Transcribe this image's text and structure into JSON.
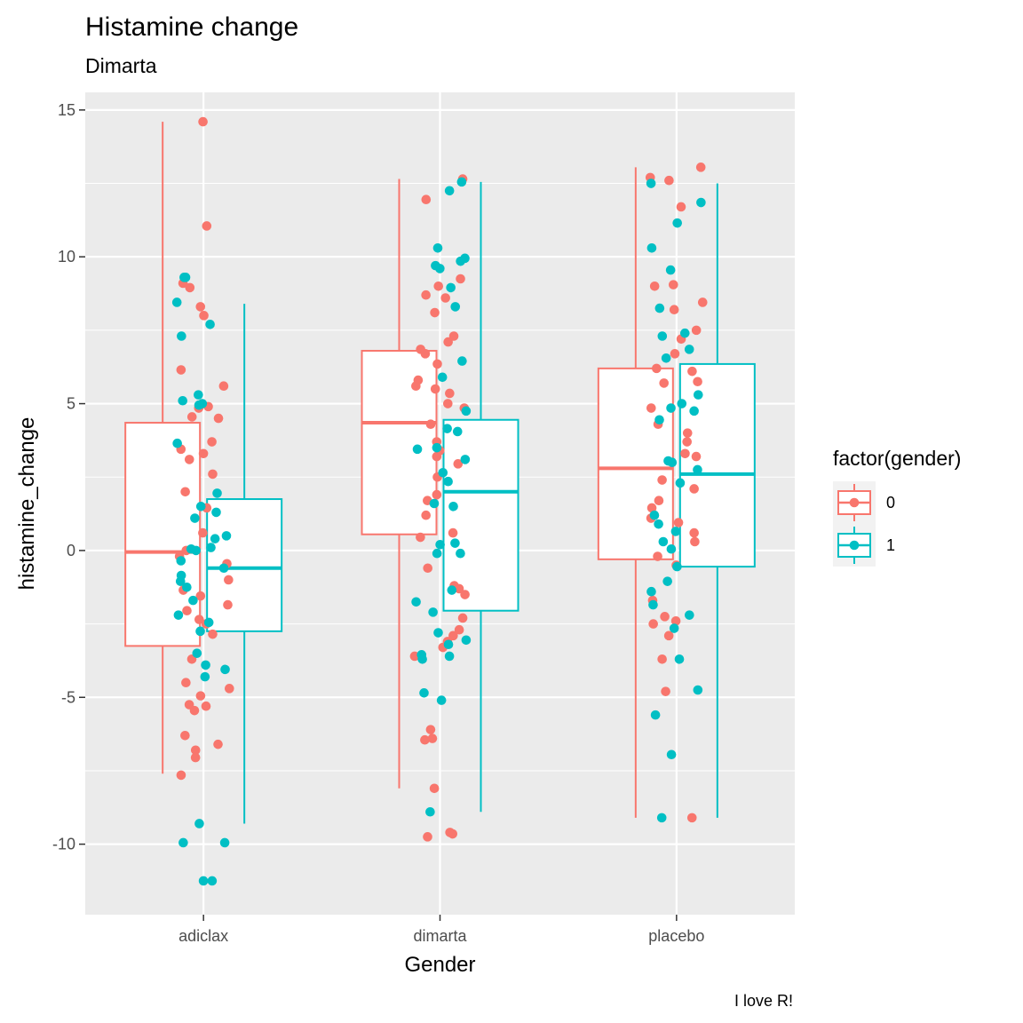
{
  "chart_data": {
    "type": "box_jitter",
    "title": "Histamine change",
    "subtitle": "Dimarta",
    "xlabel": "Gender",
    "ylabel": "histamine_change",
    "caption": "I love R!",
    "categories": [
      "adiclax",
      "dimarta",
      "placebo"
    ],
    "ylim": [
      -12.4,
      15.6
    ],
    "yticks": [
      -10,
      -5,
      0,
      5,
      10,
      15
    ],
    "ytick_labels": [
      "-10",
      "-5",
      "0",
      "5",
      "10",
      "15"
    ],
    "grid": true,
    "legend": {
      "title": "factor(gender)",
      "position": "right",
      "entries": [
        "0",
        "1"
      ]
    },
    "series": [
      {
        "name": "0",
        "color": "#F8766D",
        "boxes": [
          {
            "category": "adiclax",
            "whisker_low": -7.6,
            "q1": -3.25,
            "median": -0.05,
            "q3": 4.35,
            "whisker_high": 14.6
          },
          {
            "category": "dimarta",
            "whisker_low": -8.1,
            "q1": 0.55,
            "median": 4.35,
            "q3": 6.8,
            "whisker_high": 12.65
          },
          {
            "category": "placebo",
            "whisker_low": -9.1,
            "q1": -0.3,
            "median": 2.8,
            "q3": 6.2,
            "whisker_high": 13.05
          }
        ],
        "points": [
          {
            "category": "adiclax",
            "values": [
              14.6,
              11.05,
              9.1,
              8.95,
              8.3,
              8.0,
              6.15,
              5.6,
              4.9,
              4.85,
              4.55,
              4.5,
              3.7,
              3.45,
              3.3,
              3.1,
              2.6,
              2.0,
              1.45,
              0.6,
              0.0,
              -0.2,
              -0.45,
              -1.0,
              -1.35,
              -1.55,
              -1.85,
              -2.05,
              -2.35,
              -2.5,
              -2.85,
              -3.7,
              -4.5,
              -4.7,
              -4.95,
              -5.25,
              -5.3,
              -5.45,
              -6.3,
              -6.6,
              -6.8,
              -7.05,
              -7.65
            ]
          },
          {
            "category": "dimarta",
            "values": [
              12.65,
              11.95,
              9.25,
              9.0,
              8.7,
              8.6,
              8.1,
              7.3,
              7.1,
              6.85,
              6.7,
              6.35,
              5.8,
              5.6,
              5.5,
              5.35,
              5.0,
              4.85,
              4.3,
              3.7,
              3.4,
              3.2,
              2.95,
              2.5,
              1.9,
              1.7,
              1.2,
              0.6,
              0.45,
              -0.6,
              -1.2,
              -1.3,
              -1.5,
              -2.3,
              -2.7,
              -2.9,
              -3.1,
              -3.3,
              -3.6,
              -6.1,
              -6.4,
              -6.45,
              -8.1,
              -9.6,
              -9.65,
              -9.75
            ]
          },
          {
            "category": "placebo",
            "values": [
              13.05,
              12.7,
              12.6,
              11.7,
              9.05,
              9.0,
              8.45,
              8.2,
              7.5,
              7.2,
              6.7,
              6.2,
              6.1,
              5.75,
              5.7,
              4.85,
              4.3,
              4.0,
              3.7,
              3.3,
              3.2,
              2.4,
              2.1,
              1.7,
              1.45,
              1.2,
              1.1,
              0.95,
              0.6,
              0.3,
              -0.2,
              -0.5,
              -1.7,
              -2.25,
              -2.4,
              -2.5,
              -2.9,
              -3.7,
              -4.8,
              -9.1
            ]
          }
        ]
      },
      {
        "name": "1",
        "color": "#00BFC4",
        "boxes": [
          {
            "category": "adiclax",
            "whisker_low": -9.3,
            "q1": -2.75,
            "median": -0.6,
            "q3": 1.75,
            "whisker_high": 8.4
          },
          {
            "category": "dimarta",
            "whisker_low": -8.9,
            "q1": -2.05,
            "median": 2.0,
            "q3": 4.45,
            "whisker_high": 12.55
          },
          {
            "category": "placebo",
            "whisker_low": -9.1,
            "q1": -0.55,
            "median": 2.6,
            "q3": 6.35,
            "whisker_high": 12.5
          }
        ]
      },
      {
        "name": "1",
        "color": "#00BFC4",
        "points": [
          {
            "category": "adiclax",
            "values": [
              9.3,
              9.3,
              8.45,
              7.7,
              7.3,
              5.3,
              5.1,
              5.0,
              4.95,
              3.65,
              1.95,
              1.5,
              1.3,
              1.1,
              0.5,
              0.4,
              0.1,
              0.05,
              0.0,
              -0.35,
              -0.6,
              -0.85,
              -1.05,
              -1.25,
              -1.7,
              -2.2,
              -2.45,
              -2.75,
              -3.5,
              -3.9,
              -4.05,
              -4.3,
              -9.3,
              -9.95,
              -9.95,
              -11.25,
              -11.25
            ]
          },
          {
            "category": "dimarta",
            "values": [
              12.55,
              12.25,
              10.3,
              9.95,
              9.85,
              9.7,
              9.6,
              8.95,
              8.3,
              6.45,
              5.9,
              4.75,
              4.15,
              4.05,
              3.5,
              3.45,
              3.1,
              2.65,
              2.35,
              1.6,
              1.5,
              0.25,
              0.2,
              -0.1,
              -0.1,
              -1.35,
              -1.75,
              -2.1,
              -2.8,
              -3.05,
              -3.2,
              -3.55,
              -3.6,
              -3.7,
              -4.85,
              -5.1,
              -8.9
            ]
          },
          {
            "category": "placebo",
            "values": [
              12.5,
              11.85,
              11.15,
              10.3,
              9.55,
              8.25,
              7.4,
              7.3,
              6.85,
              6.55,
              5.3,
              5.0,
              4.85,
              4.75,
              4.45,
              3.05,
              3.0,
              2.75,
              2.3,
              1.2,
              0.9,
              0.65,
              0.3,
              0.05,
              -0.55,
              -1.05,
              -1.4,
              -1.85,
              -2.2,
              -2.65,
              -3.7,
              -4.75,
              -5.6,
              -6.95,
              -9.1
            ]
          }
        ]
      }
    ]
  }
}
